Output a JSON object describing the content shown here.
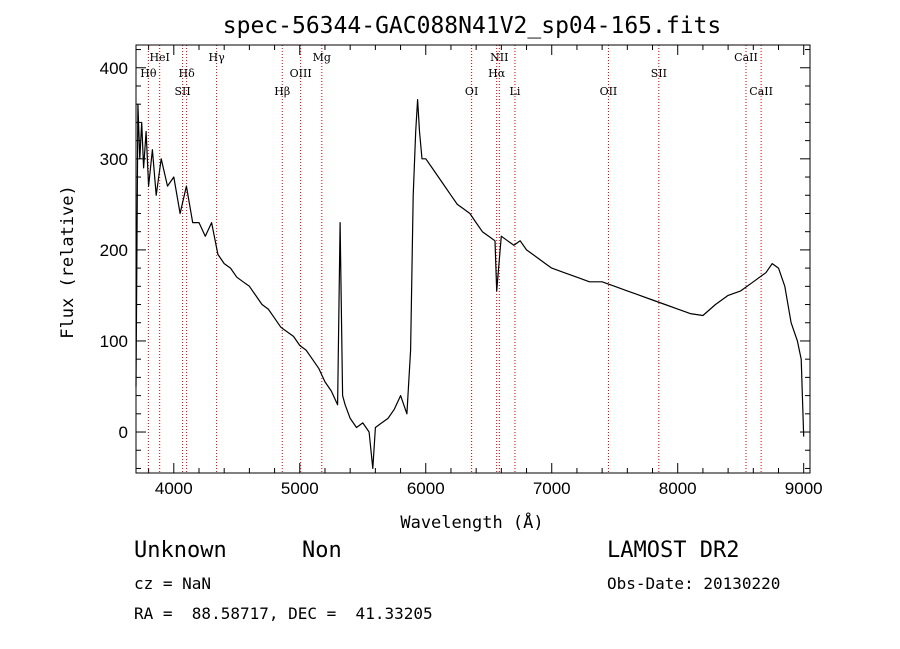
{
  "chart_data": {
    "type": "line",
    "title": "spec-56344-GAC088N41V2_sp04-165.fits",
    "xlabel": "Wavelength (Å)",
    "ylabel": "Flux (relative)",
    "xlim": [
      3700,
      9050
    ],
    "ylim": [
      -45,
      425
    ],
    "x_ticks": [
      4000,
      5000,
      6000,
      7000,
      8000,
      9000
    ],
    "y_ticks": [
      0,
      100,
      200,
      300,
      400
    ],
    "grid": false,
    "line_color": "#000000",
    "marker_color": "#cc0000",
    "series": [
      {
        "x": [
          3700,
          3715,
          3730,
          3745,
          3760,
          3780,
          3800,
          3830,
          3860,
          3900,
          3950,
          4000,
          4050,
          4100,
          4150,
          4200,
          4250,
          4300,
          4350,
          4400,
          4450,
          4500,
          4550,
          4600,
          4650,
          4700,
          4750,
          4800,
          4850,
          4900,
          4950,
          5000,
          5050,
          5100,
          5150,
          5200,
          5250,
          5300,
          5320,
          5340,
          5360,
          5400,
          5450,
          5500,
          5550,
          5580,
          5600,
          5650,
          5700,
          5750,
          5800,
          5850,
          5880,
          5900,
          5920,
          5935,
          5950,
          5970,
          6000,
          6050,
          6100,
          6150,
          6200,
          6250,
          6300,
          6350,
          6400,
          6450,
          6500,
          6550,
          6563,
          6600,
          6650,
          6700,
          6750,
          6800,
          6850,
          6900,
          6950,
          7000,
          7100,
          7200,
          7300,
          7400,
          7500,
          7600,
          7700,
          7800,
          7900,
          8000,
          8100,
          8200,
          8300,
          8400,
          8500,
          8600,
          8700,
          8750,
          8800,
          8850,
          8900,
          8950,
          8980,
          9000
        ],
        "y": [
          50,
          360,
          300,
          340,
          290,
          330,
          270,
          310,
          260,
          300,
          270,
          280,
          240,
          270,
          230,
          230,
          215,
          230,
          195,
          185,
          180,
          170,
          165,
          160,
          150,
          140,
          135,
          125,
          115,
          110,
          105,
          95,
          90,
          80,
          70,
          55,
          45,
          30,
          230,
          40,
          30,
          15,
          5,
          10,
          0,
          -40,
          5,
          10,
          15,
          25,
          40,
          20,
          90,
          260,
          330,
          365,
          330,
          300,
          300,
          290,
          280,
          270,
          260,
          250,
          245,
          240,
          230,
          220,
          215,
          210,
          155,
          215,
          210,
          205,
          210,
          200,
          195,
          190,
          185,
          180,
          175,
          170,
          165,
          165,
          160,
          155,
          150,
          145,
          140,
          135,
          130,
          128,
          140,
          150,
          155,
          165,
          175,
          185,
          180,
          160,
          120,
          100,
          80,
          -5
        ]
      }
    ],
    "lines_top": [
      {
        "label": "HeI",
        "x": 3888
      },
      {
        "label": "Hγ",
        "x": 4340
      },
      {
        "label": "Mg",
        "x": 5175
      },
      {
        "label": "NII",
        "x": 6584
      },
      {
        "label": "CaII",
        "x": 8542
      }
    ],
    "lines_mid": [
      {
        "label": "Hθ",
        "x": 3798
      },
      {
        "label": "Hδ",
        "x": 4102
      },
      {
        "label": "OIII",
        "x": 5007
      },
      {
        "label": "Hα",
        "x": 6563
      },
      {
        "label": "SII",
        "x": 7850
      }
    ],
    "lines_low": [
      {
        "label": "SII",
        "x": 4070
      },
      {
        "label": "Hβ",
        "x": 4861
      },
      {
        "label": "OI",
        "x": 6364
      },
      {
        "label": "Li",
        "x": 6708
      },
      {
        "label": "OII",
        "x": 7450
      },
      {
        "label": "CaII",
        "x": 8662
      }
    ]
  },
  "footer": {
    "object_class": "Unknown",
    "object_subclass": "Non",
    "survey": "LAMOST DR2",
    "redshift": "cz = NaN",
    "obs_date": "Obs-Date: 20130220",
    "coordinates": "RA =  88.58717, DEC =  41.33205"
  }
}
